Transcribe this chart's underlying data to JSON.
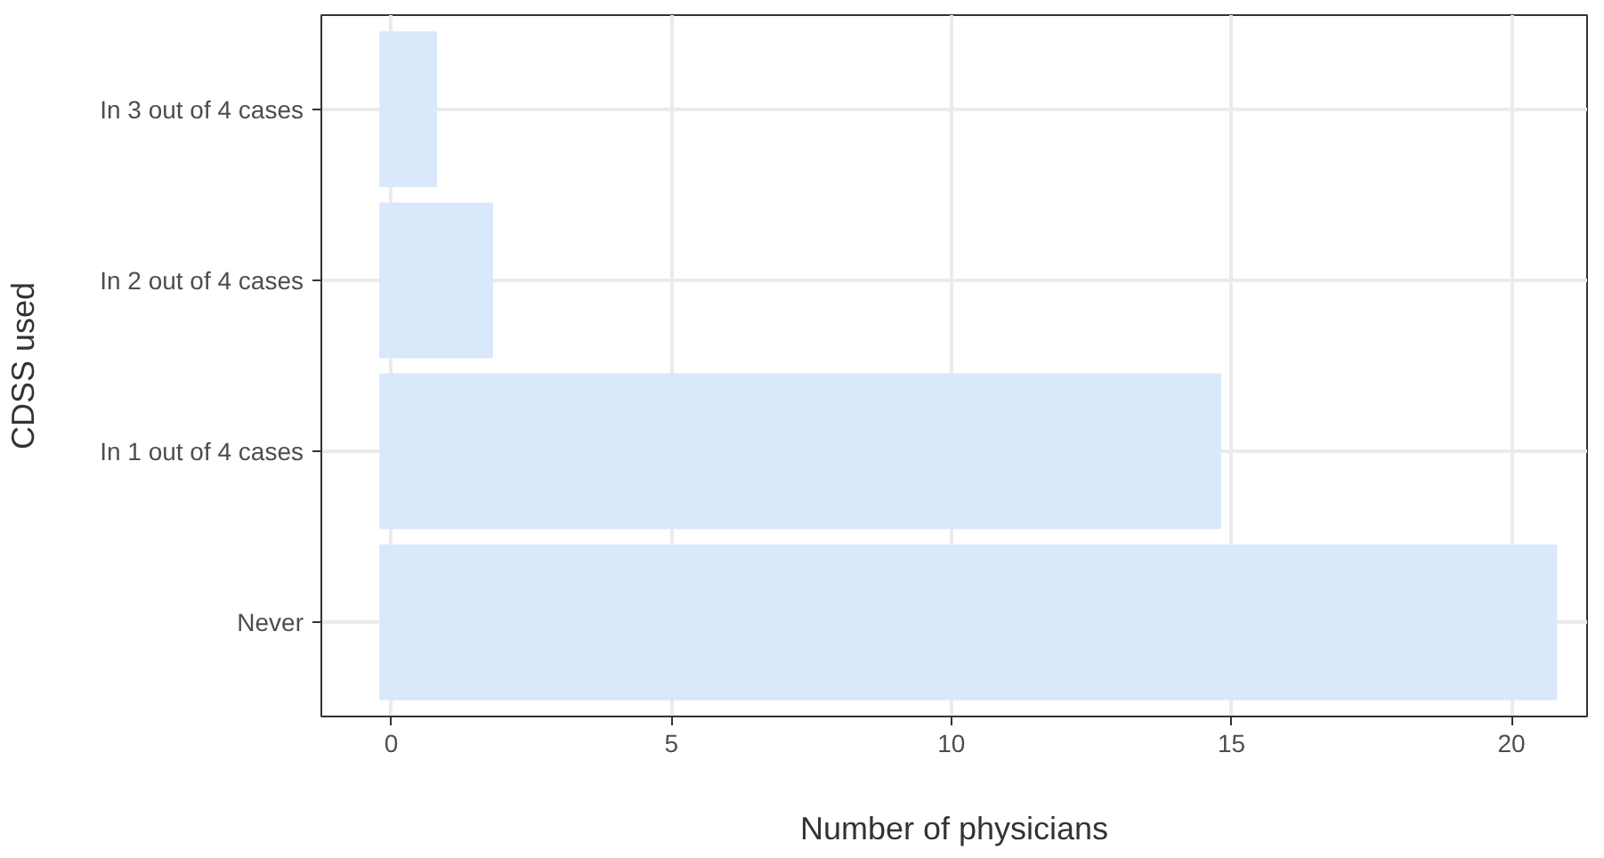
{
  "chart_data": {
    "type": "bar",
    "orientation": "horizontal",
    "xlabel": "Number of physicians",
    "ylabel": "CDSS used",
    "categories": [
      "In 3 out of 4 cases",
      "In 2 out of 4 cases",
      "In 1 out of 4 cases",
      "Never"
    ],
    "values": [
      1,
      2,
      15,
      21
    ],
    "base": [
      -0.2,
      -0.2,
      -0.2,
      -0.2
    ],
    "color": "#dae8fc",
    "xlim": [
      -1.25,
      21.35
    ],
    "xticks": [
      0,
      5,
      10,
      15,
      20
    ],
    "grid": true
  }
}
